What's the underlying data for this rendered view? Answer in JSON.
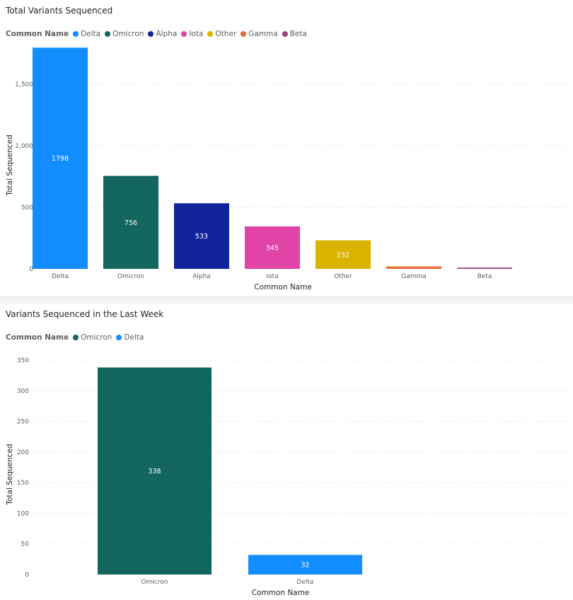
{
  "chart_data": [
    {
      "type": "bar",
      "title": "Total Variants Sequenced",
      "legend": {
        "title": "Common Name",
        "placement": "top-left",
        "entries": [
          {
            "name": "Delta",
            "color": "#118dff"
          },
          {
            "name": "Omicron",
            "color": "#12665e"
          },
          {
            "name": "Alpha",
            "color": "#12239e"
          },
          {
            "name": "Iota",
            "color": "#e044a7"
          },
          {
            "name": "Other",
            "color": "#d9b300"
          },
          {
            "name": "Gamma",
            "color": "#e66c37"
          },
          {
            "name": "Beta",
            "color": "#a43b76"
          }
        ]
      },
      "categories": [
        "Delta",
        "Omicron",
        "Alpha",
        "Iota",
        "Other",
        "Gamma",
        "Beta"
      ],
      "values": [
        1798,
        756,
        533,
        345,
        232,
        20,
        10
      ],
      "data_labels": [
        "1798",
        "756",
        "533",
        "345",
        "232",
        "",
        ""
      ],
      "colors": [
        "#118dff",
        "#12665e",
        "#12239e",
        "#e044a7",
        "#d9b300",
        "#e66c37",
        "#a43b76"
      ],
      "xlabel": "Common Name",
      "ylabel": "Total Sequenced",
      "yticks": [
        0,
        500,
        1000,
        1500
      ],
      "ytick_labels": [
        "0",
        "500",
        "1,000",
        "1,500"
      ],
      "ylim": [
        0,
        1800
      ],
      "grid": true
    },
    {
      "type": "bar",
      "title": "Variants Sequenced in the Last Week",
      "legend": {
        "title": "Common Name",
        "placement": "top-left",
        "entries": [
          {
            "name": "Omicron",
            "color": "#12665e"
          },
          {
            "name": "Delta",
            "color": "#118dff"
          }
        ]
      },
      "categories": [
        "Omicron",
        "Delta"
      ],
      "values": [
        338,
        32
      ],
      "data_labels": [
        "338",
        "32"
      ],
      "colors": [
        "#12665e",
        "#118dff"
      ],
      "xlabel": "Common Name",
      "ylabel": "Total Sequenced",
      "yticks": [
        0,
        50,
        100,
        150,
        200,
        250,
        300,
        350
      ],
      "ytick_labels": [
        "0",
        "50",
        "100",
        "150",
        "200",
        "250",
        "300",
        "350"
      ],
      "ylim": [
        0,
        350
      ],
      "grid": true
    }
  ]
}
